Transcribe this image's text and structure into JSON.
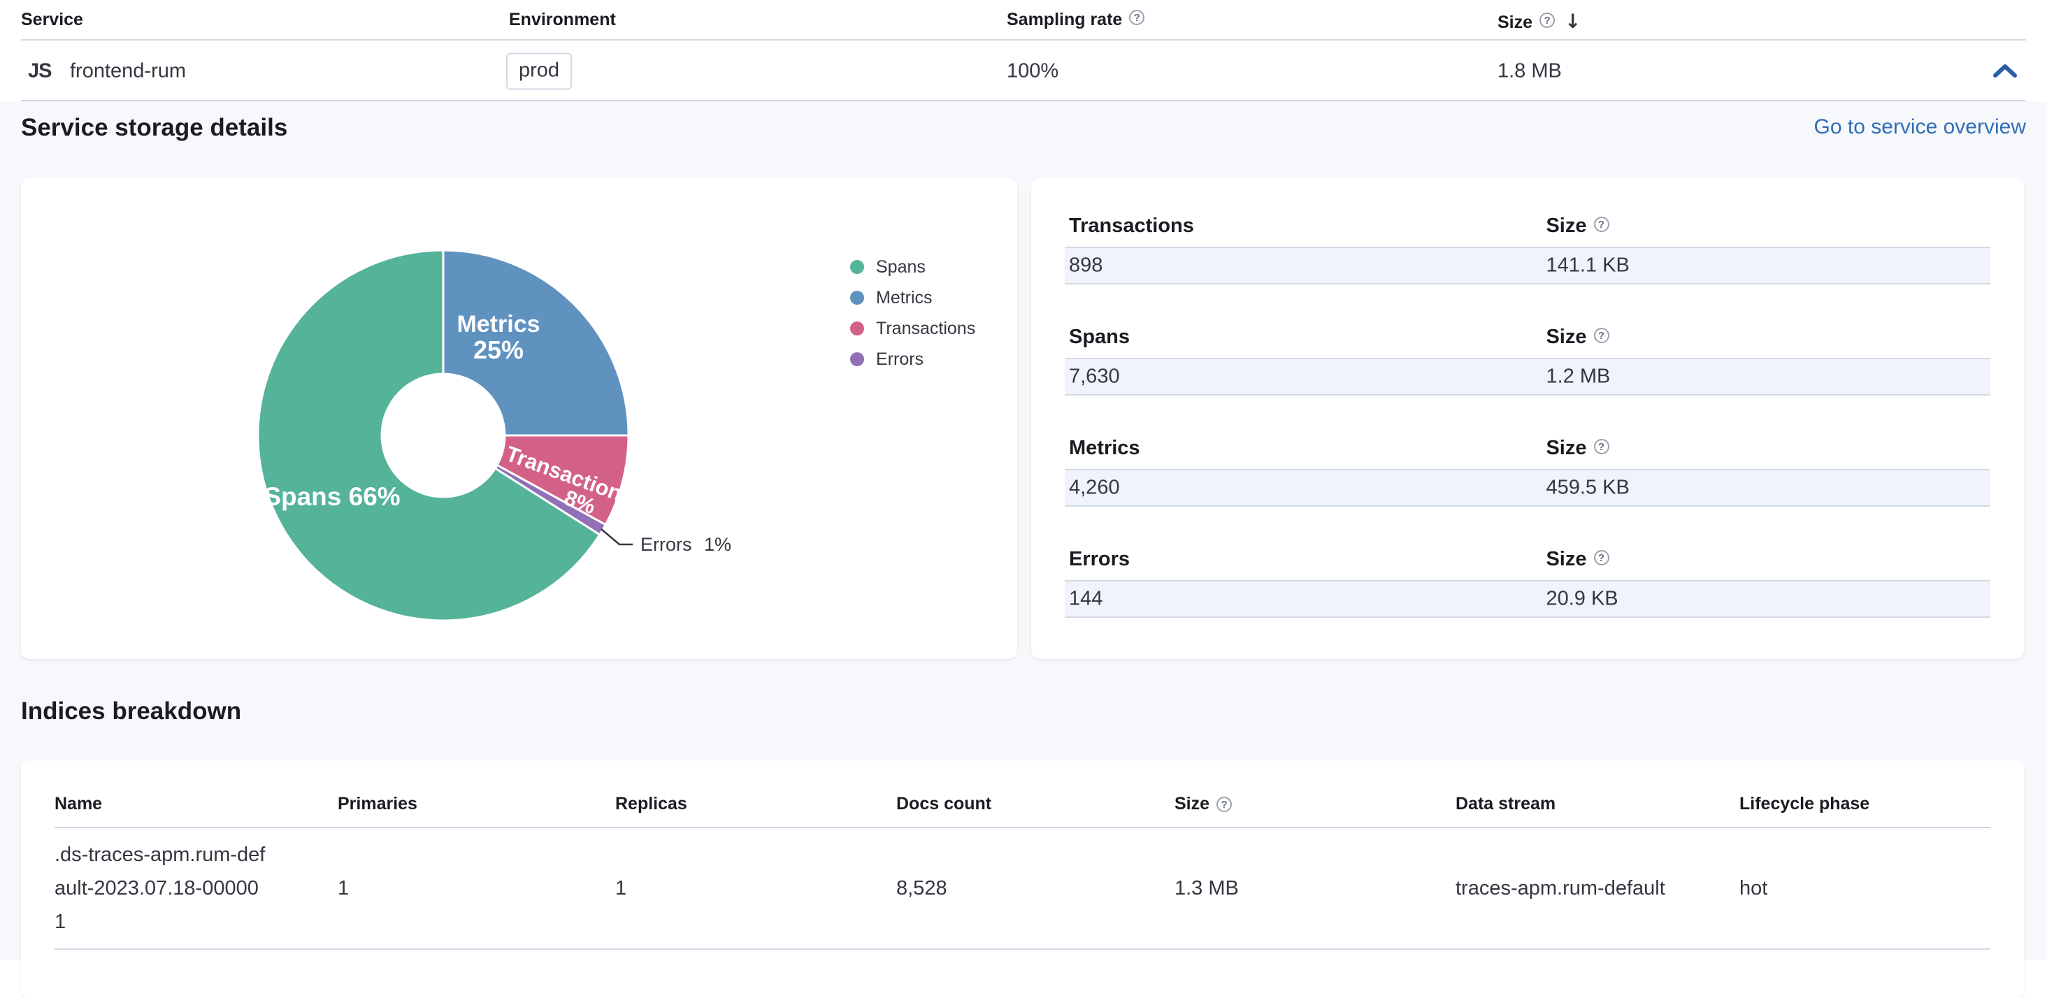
{
  "service_table": {
    "columns": {
      "service": "Service",
      "environment": "Environment",
      "sampling_rate": "Sampling rate",
      "size": "Size"
    },
    "row": {
      "agent_icon": "JS",
      "service_name": "frontend-rum",
      "environment_badge": "prod",
      "sampling_rate": "100%",
      "size": "1.8 MB"
    }
  },
  "storage_details": {
    "title": "Service storage details",
    "overview_link": "Go to service overview",
    "groups": [
      {
        "label": "Transactions",
        "size_label": "Size",
        "count": "898",
        "size": "141.1 KB"
      },
      {
        "label": "Spans",
        "size_label": "Size",
        "count": "7,630",
        "size": "1.2 MB"
      },
      {
        "label": "Metrics",
        "size_label": "Size",
        "count": "4,260",
        "size": "459.5 KB"
      },
      {
        "label": "Errors",
        "size_label": "Size",
        "count": "144",
        "size": "20.9 KB"
      }
    ]
  },
  "chart_data": {
    "type": "pie",
    "donut": true,
    "start_angle_deg": 122.4,
    "legend_position": "right",
    "categories": [
      "Spans",
      "Metrics",
      "Transactions",
      "Errors"
    ],
    "values_pct": [
      66,
      25,
      8,
      1
    ],
    "slices": [
      {
        "name": "Spans",
        "pct": 66,
        "color": "#54B399"
      },
      {
        "name": "Metrics",
        "pct": 25,
        "color": "#6092C0"
      },
      {
        "name": "Transactions",
        "pct": 8,
        "color": "#D36086"
      },
      {
        "name": "Errors",
        "pct": 1,
        "color": "#9170B8"
      }
    ],
    "display_labels": {
      "metrics_name": "Metrics",
      "metrics_pct": "25%",
      "spans": "Spans 66%",
      "transactions_name": "Transactions",
      "transactions_pct": "8%",
      "errors": "Errors 1%"
    }
  },
  "indices_breakdown": {
    "title": "Indices breakdown",
    "columns": [
      "Name",
      "Primaries",
      "Replicas",
      "Docs count",
      "Size",
      "Data stream",
      "Lifecycle phase"
    ],
    "rows": [
      {
        "name": ".ds-traces-apm.rum-default-2023.07.18-000001",
        "primaries": "1",
        "replicas": "1",
        "docs_count": "8,528",
        "size": "1.3 MB",
        "data_stream": "traces-apm.rum-default",
        "lifecycle_phase": "hot"
      }
    ]
  },
  "colors": {
    "link": "#2f6db8",
    "border": "#d3dae6",
    "stripe_bg": "#f0f3fa",
    "section_bg": "#f7f8fc",
    "spans": "#54B399",
    "metrics": "#6092C0",
    "transactions": "#D36086",
    "errors": "#9170B8"
  }
}
